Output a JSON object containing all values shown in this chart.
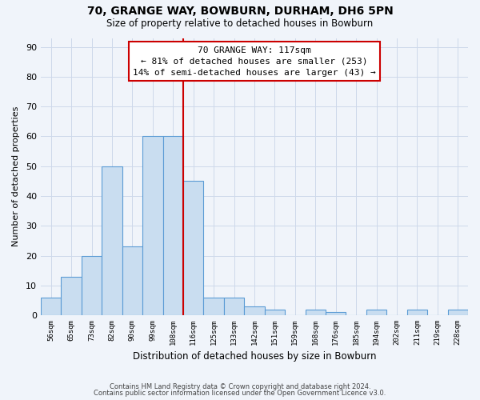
{
  "title1": "70, GRANGE WAY, BOWBURN, DURHAM, DH6 5PN",
  "title2": "Size of property relative to detached houses in Bowburn",
  "xlabel": "Distribution of detached houses by size in Bowburn",
  "ylabel": "Number of detached properties",
  "bar_labels": [
    "56sqm",
    "65sqm",
    "73sqm",
    "82sqm",
    "90sqm",
    "99sqm",
    "108sqm",
    "116sqm",
    "125sqm",
    "133sqm",
    "142sqm",
    "151sqm",
    "159sqm",
    "168sqm",
    "176sqm",
    "185sqm",
    "194sqm",
    "202sqm",
    "211sqm",
    "219sqm",
    "228sqm"
  ],
  "bar_values": [
    6,
    13,
    20,
    50,
    23,
    60,
    60,
    45,
    6,
    6,
    3,
    2,
    0,
    2,
    1,
    0,
    2,
    0,
    2,
    0,
    2
  ],
  "bar_color": "#c9ddf0",
  "bar_edge_color": "#5b9bd5",
  "red_line_color": "#cc0000",
  "annotation_title": "70 GRANGE WAY: 117sqm",
  "annotation_line1": "← 81% of detached houses are smaller (253)",
  "annotation_line2": "14% of semi-detached houses are larger (43) →",
  "annotation_box_facecolor": "#ffffff",
  "annotation_box_edgecolor": "#cc0000",
  "grid_color": "#cdd8ea",
  "ylim_max": 93,
  "yticks": [
    0,
    10,
    20,
    30,
    40,
    50,
    60,
    70,
    80,
    90
  ],
  "background_color": "#f0f4fa",
  "footer1": "Contains HM Land Registry data © Crown copyright and database right 2024.",
  "footer2": "Contains public sector information licensed under the Open Government Licence v3.0."
}
